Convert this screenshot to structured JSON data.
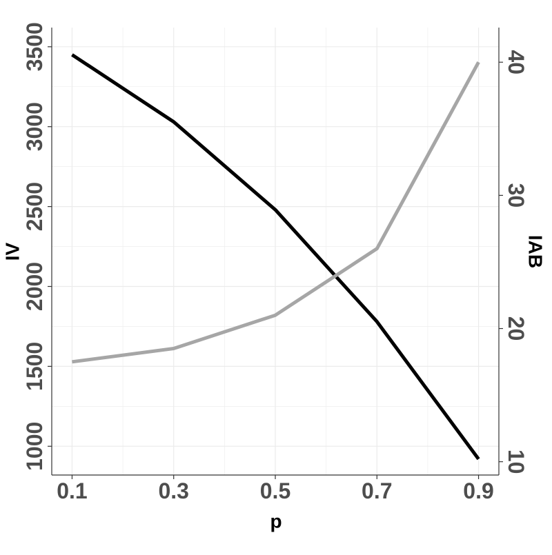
{
  "chart_data": {
    "type": "line",
    "xlabel": "p",
    "ylabel_left": "IV",
    "ylabel_right": "IAB",
    "x": [
      0.1,
      0.3,
      0.5,
      0.7,
      0.9
    ],
    "x_ticks": [
      "0.1",
      "0.3",
      "0.5",
      "0.7",
      "0.9"
    ],
    "xlim": [
      0.06,
      0.94
    ],
    "ylim_left": [
      820,
      3620
    ],
    "ylim_right": [
      9.0,
      42.6
    ],
    "y_ticks_left": [
      "1000",
      "1500",
      "2000",
      "2500",
      "3000",
      "3500"
    ],
    "y_ticks_right": [
      "10",
      "20",
      "30",
      "40"
    ],
    "grid": true,
    "legend": "none",
    "series": [
      {
        "axis": "left",
        "color": "#000000",
        "values": [
          3450,
          3030,
          2480,
          1780,
          920
        ]
      },
      {
        "axis": "right",
        "color": "#a6a6a6",
        "values": [
          17.5,
          18.5,
          21.0,
          26.0,
          40.0
        ]
      }
    ],
    "colors": {
      "background": "#ffffff",
      "grid": "#ebebeb",
      "axis": "#333333",
      "tick_text": "#4d4d4d"
    }
  }
}
